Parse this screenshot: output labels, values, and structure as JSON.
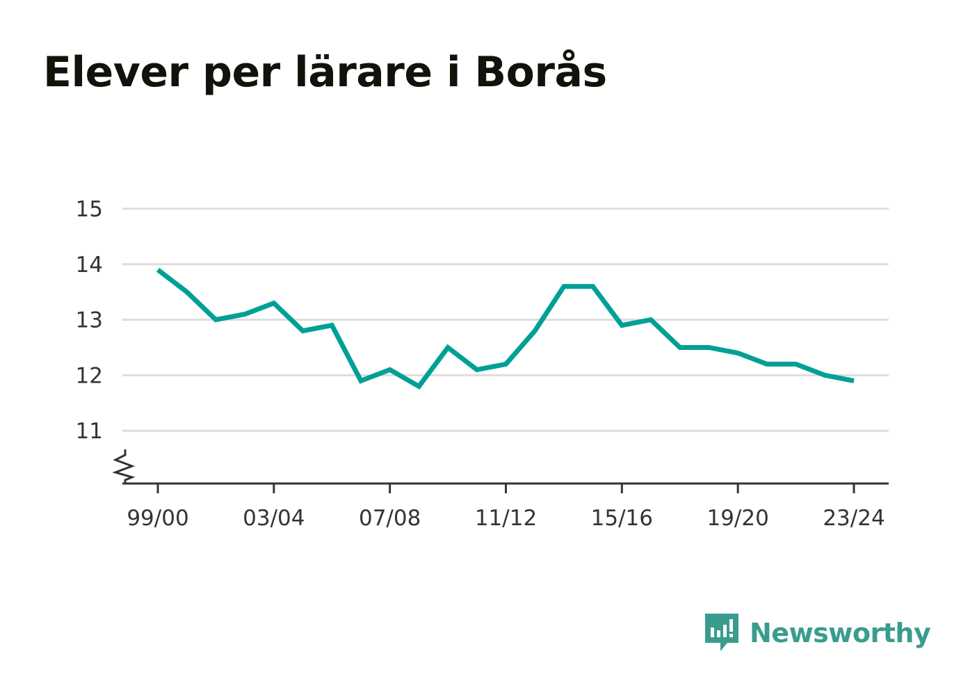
{
  "chart_data": {
    "type": "line",
    "title": "Elever per lärare i Borås",
    "xlabel": "",
    "ylabel": "",
    "x": [
      "99/00",
      "00/01",
      "01/02",
      "02/03",
      "03/04",
      "04/05",
      "05/06",
      "06/07",
      "07/08",
      "08/09",
      "09/10",
      "10/11",
      "11/12",
      "12/13",
      "13/14",
      "14/15",
      "15/16",
      "16/17",
      "17/18",
      "18/19",
      "19/20",
      "20/21",
      "21/22",
      "22/23",
      "23/24"
    ],
    "x_tick_labels": [
      "99/00",
      "03/04",
      "07/08",
      "11/12",
      "15/16",
      "19/20",
      "23/24"
    ],
    "series": [
      {
        "values": [
          13.9,
          13.5,
          13.0,
          13.1,
          13.3,
          12.8,
          12.9,
          11.9,
          12.1,
          11.8,
          12.5,
          12.1,
          12.2,
          12.8,
          13.6,
          13.6,
          12.9,
          13.0,
          12.5,
          12.5,
          12.4,
          12.2,
          12.2,
          12.0,
          11.9
        ],
        "color": "#00a096"
      }
    ],
    "y_ticks": [
      11,
      12,
      13,
      14,
      15
    ],
    "ylim": [
      10.05,
      15.0
    ],
    "y_axis_broken": true,
    "grid": true,
    "legend": "none"
  },
  "colors": {
    "line": "#00a096",
    "grid": "#dddddd",
    "axis": "#333333",
    "brand": "#3a9c8f"
  },
  "brand": {
    "name": "Newsworthy",
    "icon": "newsworthy-logo-icon"
  }
}
